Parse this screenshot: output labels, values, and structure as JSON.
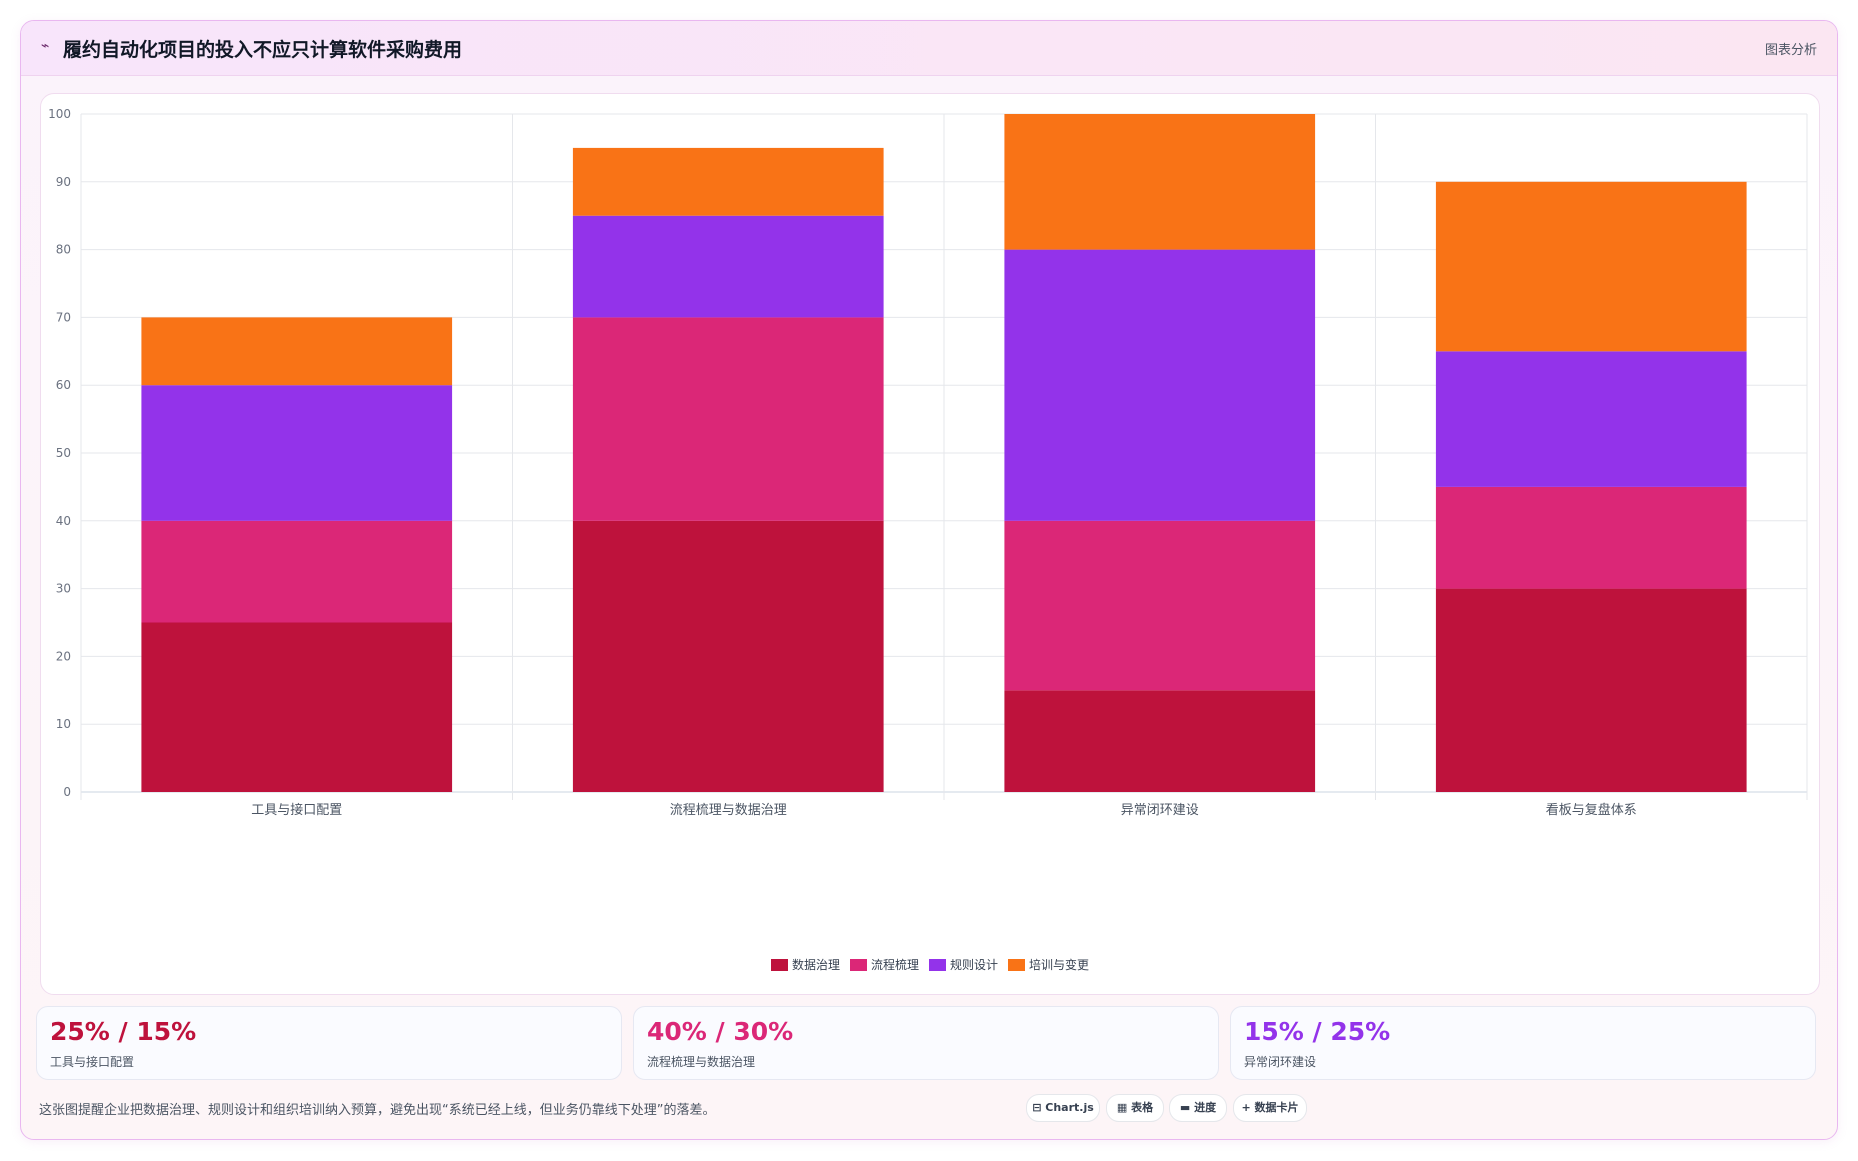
{
  "header": {
    "icon": "line-chart-icon",
    "title": "履约自动化项目的投入不应只计算软件采购费用",
    "tag": "图表分析"
  },
  "chart_data": {
    "type": "bar",
    "stacked": true,
    "categories": [
      "工具与接口配置",
      "流程梳理与数据治理",
      "异常闭环建设",
      "看板与复盘体系"
    ],
    "series": [
      {
        "name": "数据治理",
        "color": "#be123c",
        "values": [
          25,
          40,
          15,
          30
        ]
      },
      {
        "name": "流程梳理",
        "color": "#db2777",
        "values": [
          15,
          30,
          25,
          15
        ]
      },
      {
        "name": "规则设计",
        "color": "#9333ea",
        "values": [
          20,
          15,
          40,
          20
        ]
      },
      {
        "name": "培训与变更",
        "color": "#f97316",
        "values": [
          10,
          10,
          20,
          25
        ]
      }
    ],
    "ylim": [
      0,
      100
    ],
    "yticks": [
      0,
      10,
      20,
      30,
      40,
      50,
      60,
      70,
      80,
      90,
      100
    ],
    "grid": true,
    "legend_position": "bottom"
  },
  "stats": [
    {
      "value": "25% / 15%",
      "label": "工具与接口配置",
      "color": "#be123c"
    },
    {
      "value": "40% / 30%",
      "label": "流程梳理与数据治理",
      "color": "#db2777"
    },
    {
      "value": "15% / 25%",
      "label": "异常闭环建设",
      "color": "#9333ea"
    }
  ],
  "footer": {
    "note": "这张图提醒企业把数据治理、规则设计和组织培训纳入预算，避免出现“系统已经上线，但业务仍靠线下处理”的落差。",
    "pills": [
      {
        "icon": "chart-icon",
        "label": "⊟ Chart.js"
      },
      {
        "icon": "table-icon",
        "label": "▦ 表格"
      },
      {
        "icon": "progress-icon",
        "label": "▬ 进度"
      },
      {
        "icon": "card-icon",
        "label": "+ 数据卡片"
      }
    ]
  }
}
